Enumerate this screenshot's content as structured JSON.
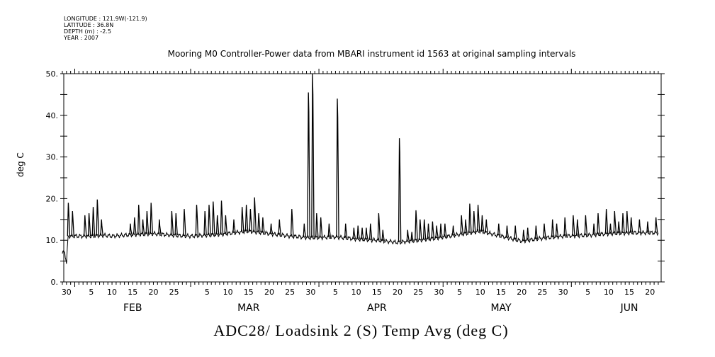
{
  "meta": {
    "longitude": "LONGITUDE : 121.9W(-121.9)",
    "latitude": "LATITUDE : 36.8N",
    "depth": "DEPTH (m) : -2.5",
    "year": "YEAR : 2007"
  },
  "chart_data": {
    "type": "line",
    "title": "Mooring M0 Controller-Power data from MBARI instrument id 1563 at original sampling intervals",
    "xlabel": "ADC28/ Loadsink 2 (S) Temp Avg (deg C)",
    "ylabel": "deg C",
    "year": 2007,
    "xlim": [
      "01-29",
      "06-22"
    ],
    "ylim": [
      0,
      50
    ],
    "yticks": [
      0,
      10,
      20,
      30,
      40,
      50
    ],
    "ytick_labels": [
      "0.",
      "10.",
      "20.",
      "30.",
      "40.",
      "50."
    ],
    "xtick_labels": [
      {
        "date": "01-30",
        "label": "30"
      },
      {
        "date": "02-05",
        "label": "5"
      },
      {
        "date": "02-10",
        "label": "10"
      },
      {
        "date": "02-15",
        "label": "15"
      },
      {
        "date": "02-20",
        "label": "20"
      },
      {
        "date": "02-25",
        "label": "25"
      },
      {
        "date": "03-05",
        "label": "5"
      },
      {
        "date": "03-10",
        "label": "10"
      },
      {
        "date": "03-15",
        "label": "15"
      },
      {
        "date": "03-20",
        "label": "20"
      },
      {
        "date": "03-25",
        "label": "25"
      },
      {
        "date": "03-30",
        "label": "30"
      },
      {
        "date": "04-05",
        "label": "5"
      },
      {
        "date": "04-10",
        "label": "10"
      },
      {
        "date": "04-15",
        "label": "15"
      },
      {
        "date": "04-20",
        "label": "20"
      },
      {
        "date": "04-25",
        "label": "25"
      },
      {
        "date": "04-30",
        "label": "30"
      },
      {
        "date": "05-05",
        "label": "5"
      },
      {
        "date": "05-10",
        "label": "10"
      },
      {
        "date": "05-15",
        "label": "15"
      },
      {
        "date": "05-20",
        "label": "20"
      },
      {
        "date": "05-25",
        "label": "25"
      },
      {
        "date": "05-30",
        "label": "30"
      },
      {
        "date": "06-05",
        "label": "5"
      },
      {
        "date": "06-10",
        "label": "10"
      },
      {
        "date": "06-15",
        "label": "15"
      },
      {
        "date": "06-20",
        "label": "20"
      }
    ],
    "month_labels": [
      {
        "date": "02-15",
        "label": "FEB"
      },
      {
        "date": "03-15",
        "label": "MAR"
      },
      {
        "date": "04-15",
        "label": "APR"
      },
      {
        "date": "05-15",
        "label": "MAY"
      },
      {
        "date": "06-15",
        "label": "JUN"
      }
    ],
    "baseline": [
      [
        "01-29",
        7
      ],
      [
        "01-29.6",
        7
      ],
      [
        "01-30",
        4.5
      ],
      [
        "01-30.4",
        11
      ],
      [
        "02-05",
        11
      ],
      [
        "02-08",
        11.2
      ],
      [
        "02-10",
        11
      ],
      [
        "02-14",
        11.3
      ],
      [
        "02-20",
        11.6
      ],
      [
        "02-25",
        11.2
      ],
      [
        "03-01",
        11
      ],
      [
        "03-08",
        11.4
      ],
      [
        "03-15",
        12.2
      ],
      [
        "03-20",
        11.6
      ],
      [
        "03-25",
        11
      ],
      [
        "03-30",
        10.6
      ],
      [
        "04-05",
        10.8
      ],
      [
        "04-10",
        10.3
      ],
      [
        "04-15",
        10
      ],
      [
        "04-20",
        9.5
      ],
      [
        "04-25",
        10
      ],
      [
        "04-30",
        10.6
      ],
      [
        "05-05",
        11.4
      ],
      [
        "05-10",
        12.2
      ],
      [
        "05-15",
        11
      ],
      [
        "05-20",
        9.8
      ],
      [
        "05-25",
        10.5
      ],
      [
        "05-30",
        11
      ],
      [
        "06-05",
        11.2
      ],
      [
        "06-10",
        11.6
      ],
      [
        "06-15",
        11.8
      ],
      [
        "06-22",
        11.8
      ]
    ],
    "spikes": [
      [
        "01-30",
        19
      ],
      [
        "01-31",
        17
      ],
      [
        "02-03",
        16
      ],
      [
        "02-04",
        16.5
      ],
      [
        "02-05",
        18
      ],
      [
        "02-06",
        19.8
      ],
      [
        "02-07",
        15
      ],
      [
        "02-14",
        14
      ],
      [
        "02-15",
        15.5
      ],
      [
        "02-16",
        18.5
      ],
      [
        "02-17",
        15
      ],
      [
        "02-18",
        17
      ],
      [
        "02-19",
        19
      ],
      [
        "02-21",
        15
      ],
      [
        "02-24",
        17
      ],
      [
        "02-25",
        16.5
      ],
      [
        "02-27",
        17.5
      ],
      [
        "03-02",
        18.5
      ],
      [
        "03-04",
        17
      ],
      [
        "03-05",
        18.5
      ],
      [
        "03-06",
        19.3
      ],
      [
        "03-07",
        16
      ],
      [
        "03-08",
        19.5
      ],
      [
        "03-09",
        16
      ],
      [
        "03-11",
        15
      ],
      [
        "03-13",
        18
      ],
      [
        "03-14",
        18.5
      ],
      [
        "03-15",
        17.5
      ],
      [
        "03-16",
        20.3
      ],
      [
        "03-17",
        16.5
      ],
      [
        "03-18",
        15.5
      ],
      [
        "03-20",
        14
      ],
      [
        "03-22",
        15
      ],
      [
        "03-25",
        17.5
      ],
      [
        "03-28",
        14
      ],
      [
        "03-29",
        45.5
      ],
      [
        "03-30",
        50
      ],
      [
        "03-31",
        16.5
      ],
      [
        "04-01",
        15.5
      ],
      [
        "04-03",
        14
      ],
      [
        "04-05",
        44
      ],
      [
        "04-07",
        14
      ],
      [
        "04-09",
        13
      ],
      [
        "04-10",
        13.5
      ],
      [
        "04-11",
        13
      ],
      [
        "04-12",
        13
      ],
      [
        "04-13",
        14
      ],
      [
        "04-15",
        16.5
      ],
      [
        "04-16",
        12.5
      ],
      [
        "04-20",
        34.5
      ],
      [
        "04-22",
        12.5
      ],
      [
        "04-23",
        12
      ],
      [
        "04-24",
        17.2
      ],
      [
        "04-25",
        15
      ],
      [
        "04-26",
        15
      ],
      [
        "04-27",
        14
      ],
      [
        "04-28",
        14.5
      ],
      [
        "04-29",
        13.5
      ],
      [
        "04-30",
        14
      ],
      [
        "05-01",
        14
      ],
      [
        "05-03",
        13.5
      ],
      [
        "05-05",
        16
      ],
      [
        "05-06",
        15
      ],
      [
        "05-07",
        18.8
      ],
      [
        "05-08",
        17
      ],
      [
        "05-09",
        18.5
      ],
      [
        "05-10",
        16
      ],
      [
        "05-11",
        15
      ],
      [
        "05-14",
        14
      ],
      [
        "05-16",
        13.5
      ],
      [
        "05-18",
        13.5
      ],
      [
        "05-20",
        12.5
      ],
      [
        "05-21",
        13
      ],
      [
        "05-23",
        13.5
      ],
      [
        "05-25",
        14
      ],
      [
        "05-27",
        15
      ],
      [
        "05-28",
        14
      ],
      [
        "05-30",
        15.5
      ],
      [
        "06-01",
        16
      ],
      [
        "06-02",
        15
      ],
      [
        "06-04",
        16
      ],
      [
        "06-06",
        14
      ],
      [
        "06-07",
        16.5
      ],
      [
        "06-09",
        17.5
      ],
      [
        "06-10",
        14
      ],
      [
        "06-11",
        17
      ],
      [
        "06-12",
        14.5
      ],
      [
        "06-13",
        16.5
      ],
      [
        "06-14",
        17
      ],
      [
        "06-15",
        15.5
      ],
      [
        "06-17",
        15
      ],
      [
        "06-19",
        14.5
      ],
      [
        "06-21",
        15.5
      ]
    ]
  }
}
